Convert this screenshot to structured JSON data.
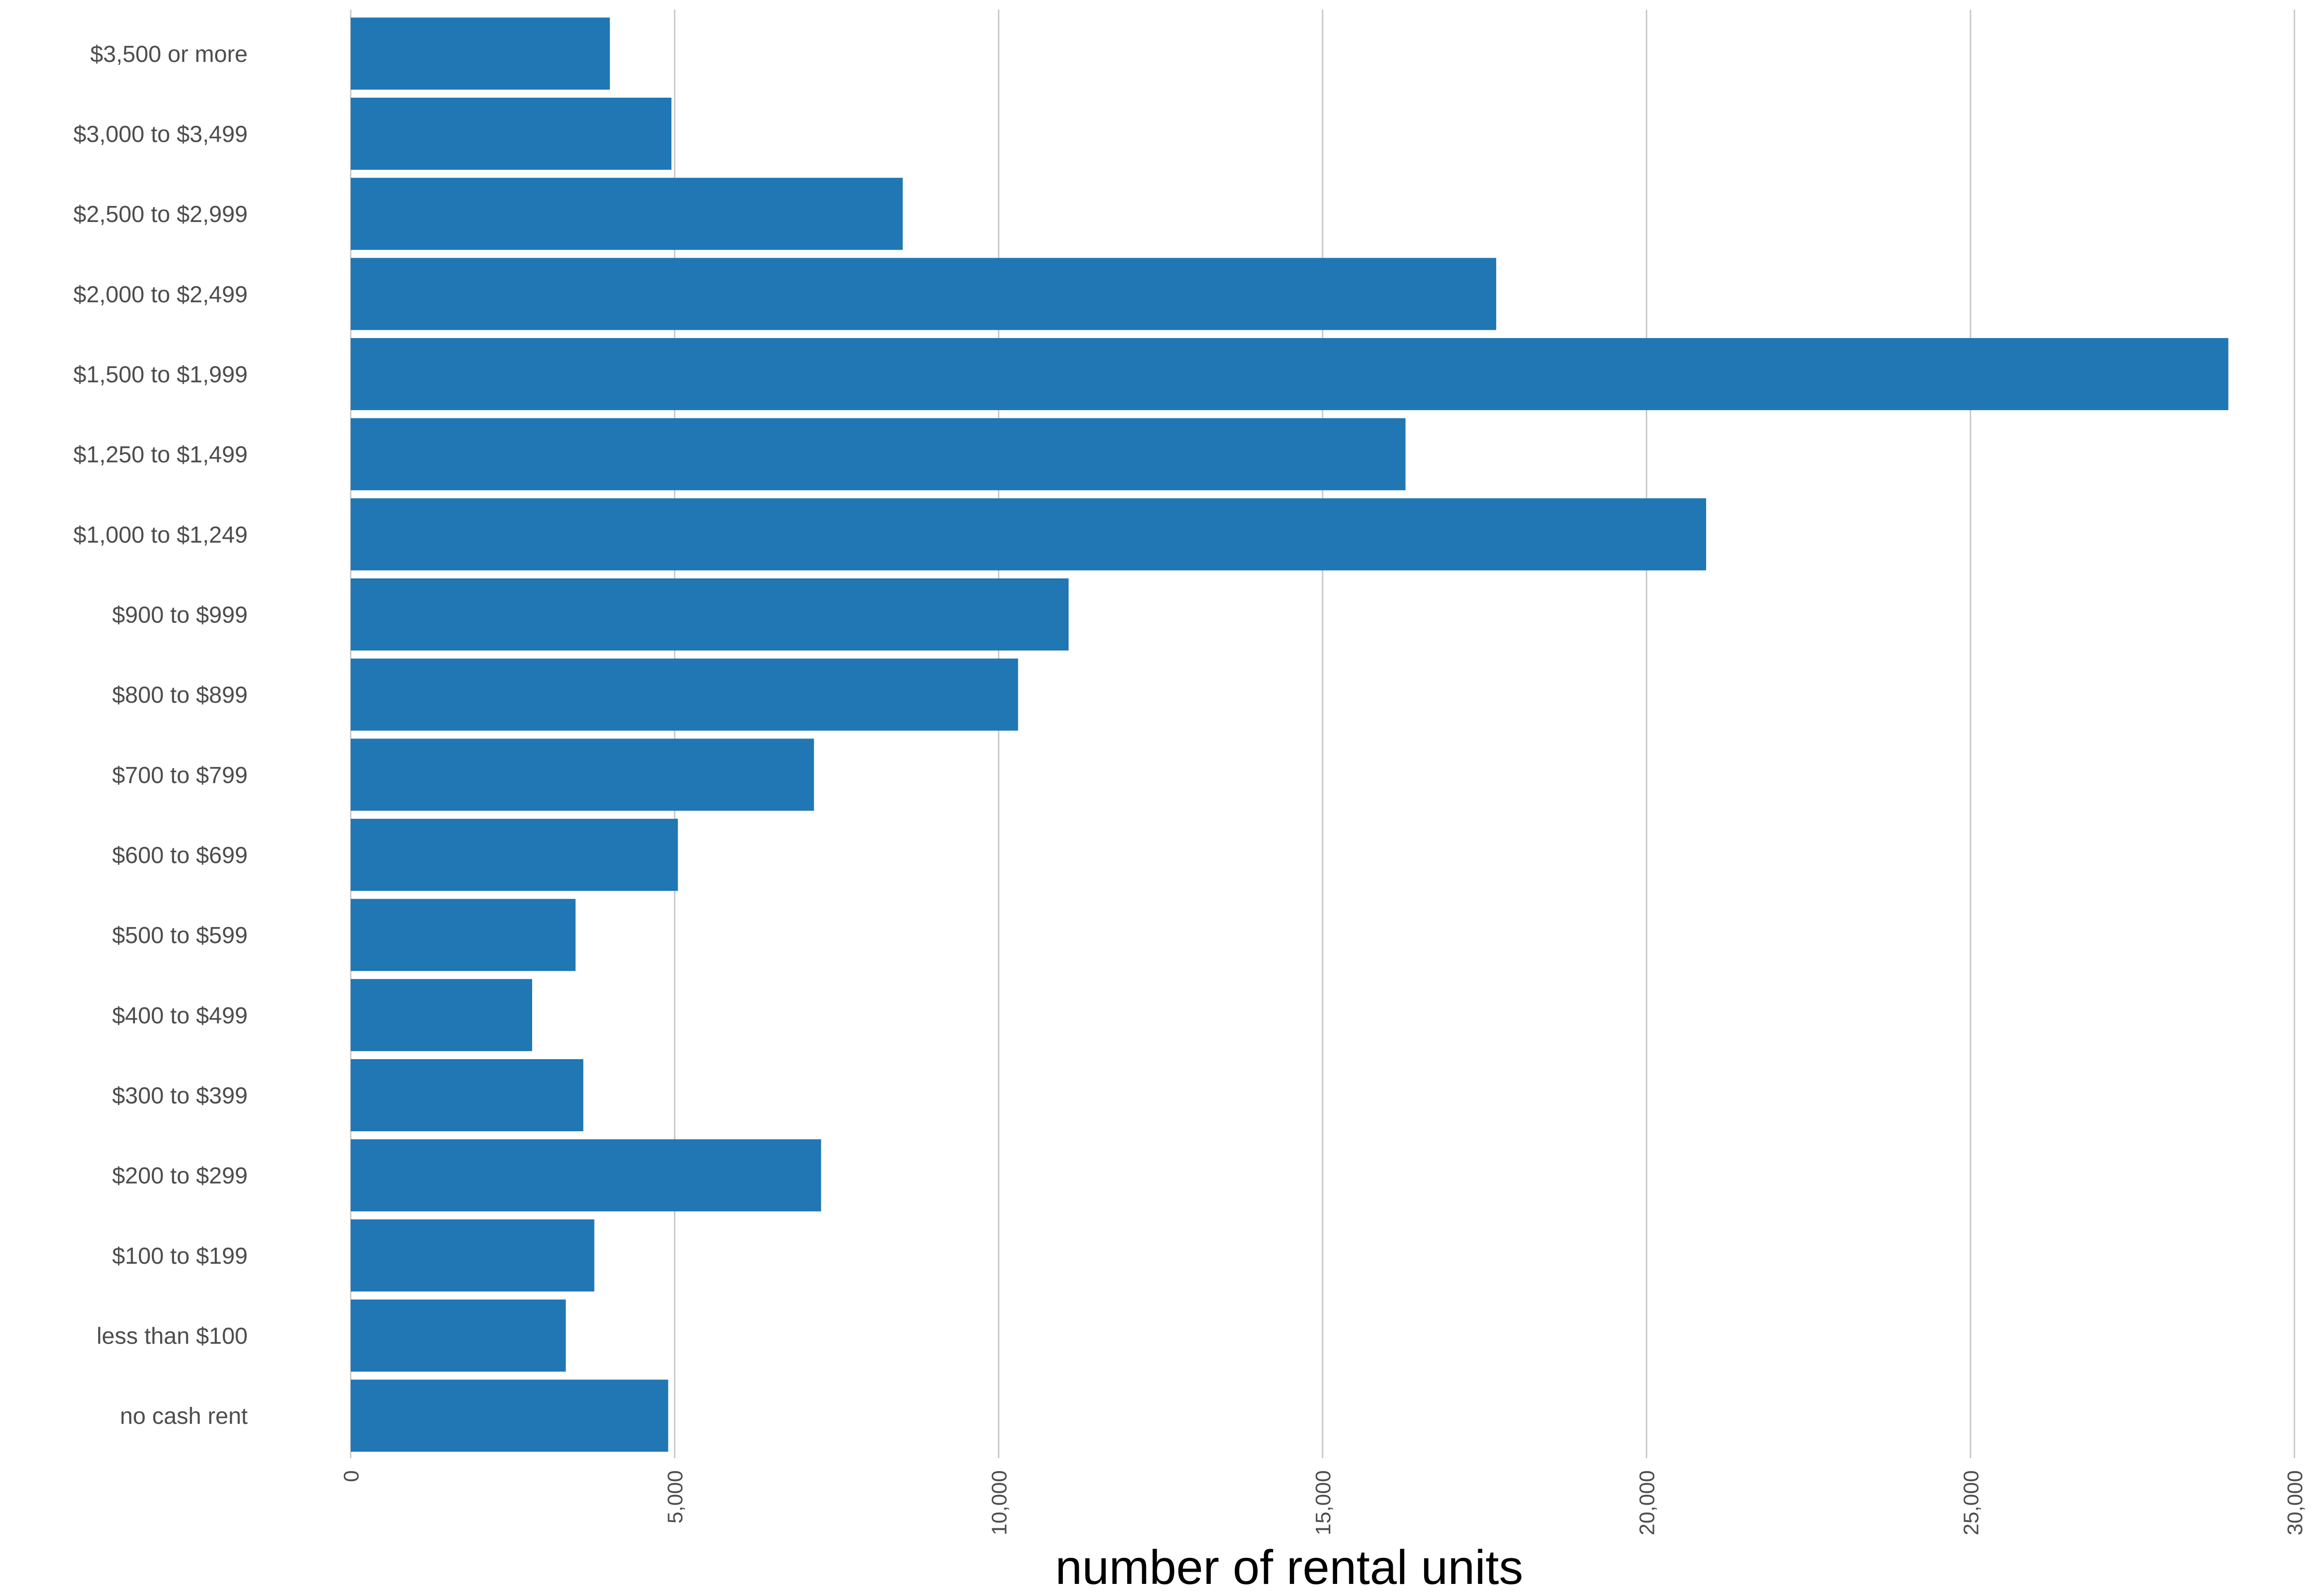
{
  "chart_data": {
    "type": "bar",
    "orientation": "horizontal",
    "categories": [
      "$3,500 or more",
      "$3,000 to $3,499",
      "$2,500 to $2,999",
      "$2,000 to $2,499",
      "$1,500 to $1,999",
      "$1,250 to $1,499",
      "$1,000 to $1,249",
      "$900 to $999",
      "$800 to $899",
      "$700 to $799",
      "$600 to $699",
      "$500 to $599",
      "$400 to $499",
      "$300 to $399",
      "$200 to $299",
      "$100 to $199",
      "less than $100",
      "no cash rent"
    ],
    "values": [
      4000,
      4950,
      8520,
      17680,
      28980,
      16280,
      20920,
      11080,
      10300,
      7150,
      5050,
      3470,
      2800,
      3590,
      7260,
      3760,
      3320,
      4900
    ],
    "xlabel": "number of rental units",
    "ylabel": "",
    "title": "",
    "xlim": [
      0,
      30000
    ],
    "x_ticks": [
      0,
      5000,
      10000,
      15000,
      20000,
      25000,
      30000
    ],
    "x_tick_labels": [
      "0",
      "5,000",
      "10,000",
      "15,000",
      "20,000",
      "25,000",
      "30,000"
    ],
    "grid": "vertical",
    "legend": "none",
    "bar_color": "#2077b4"
  }
}
